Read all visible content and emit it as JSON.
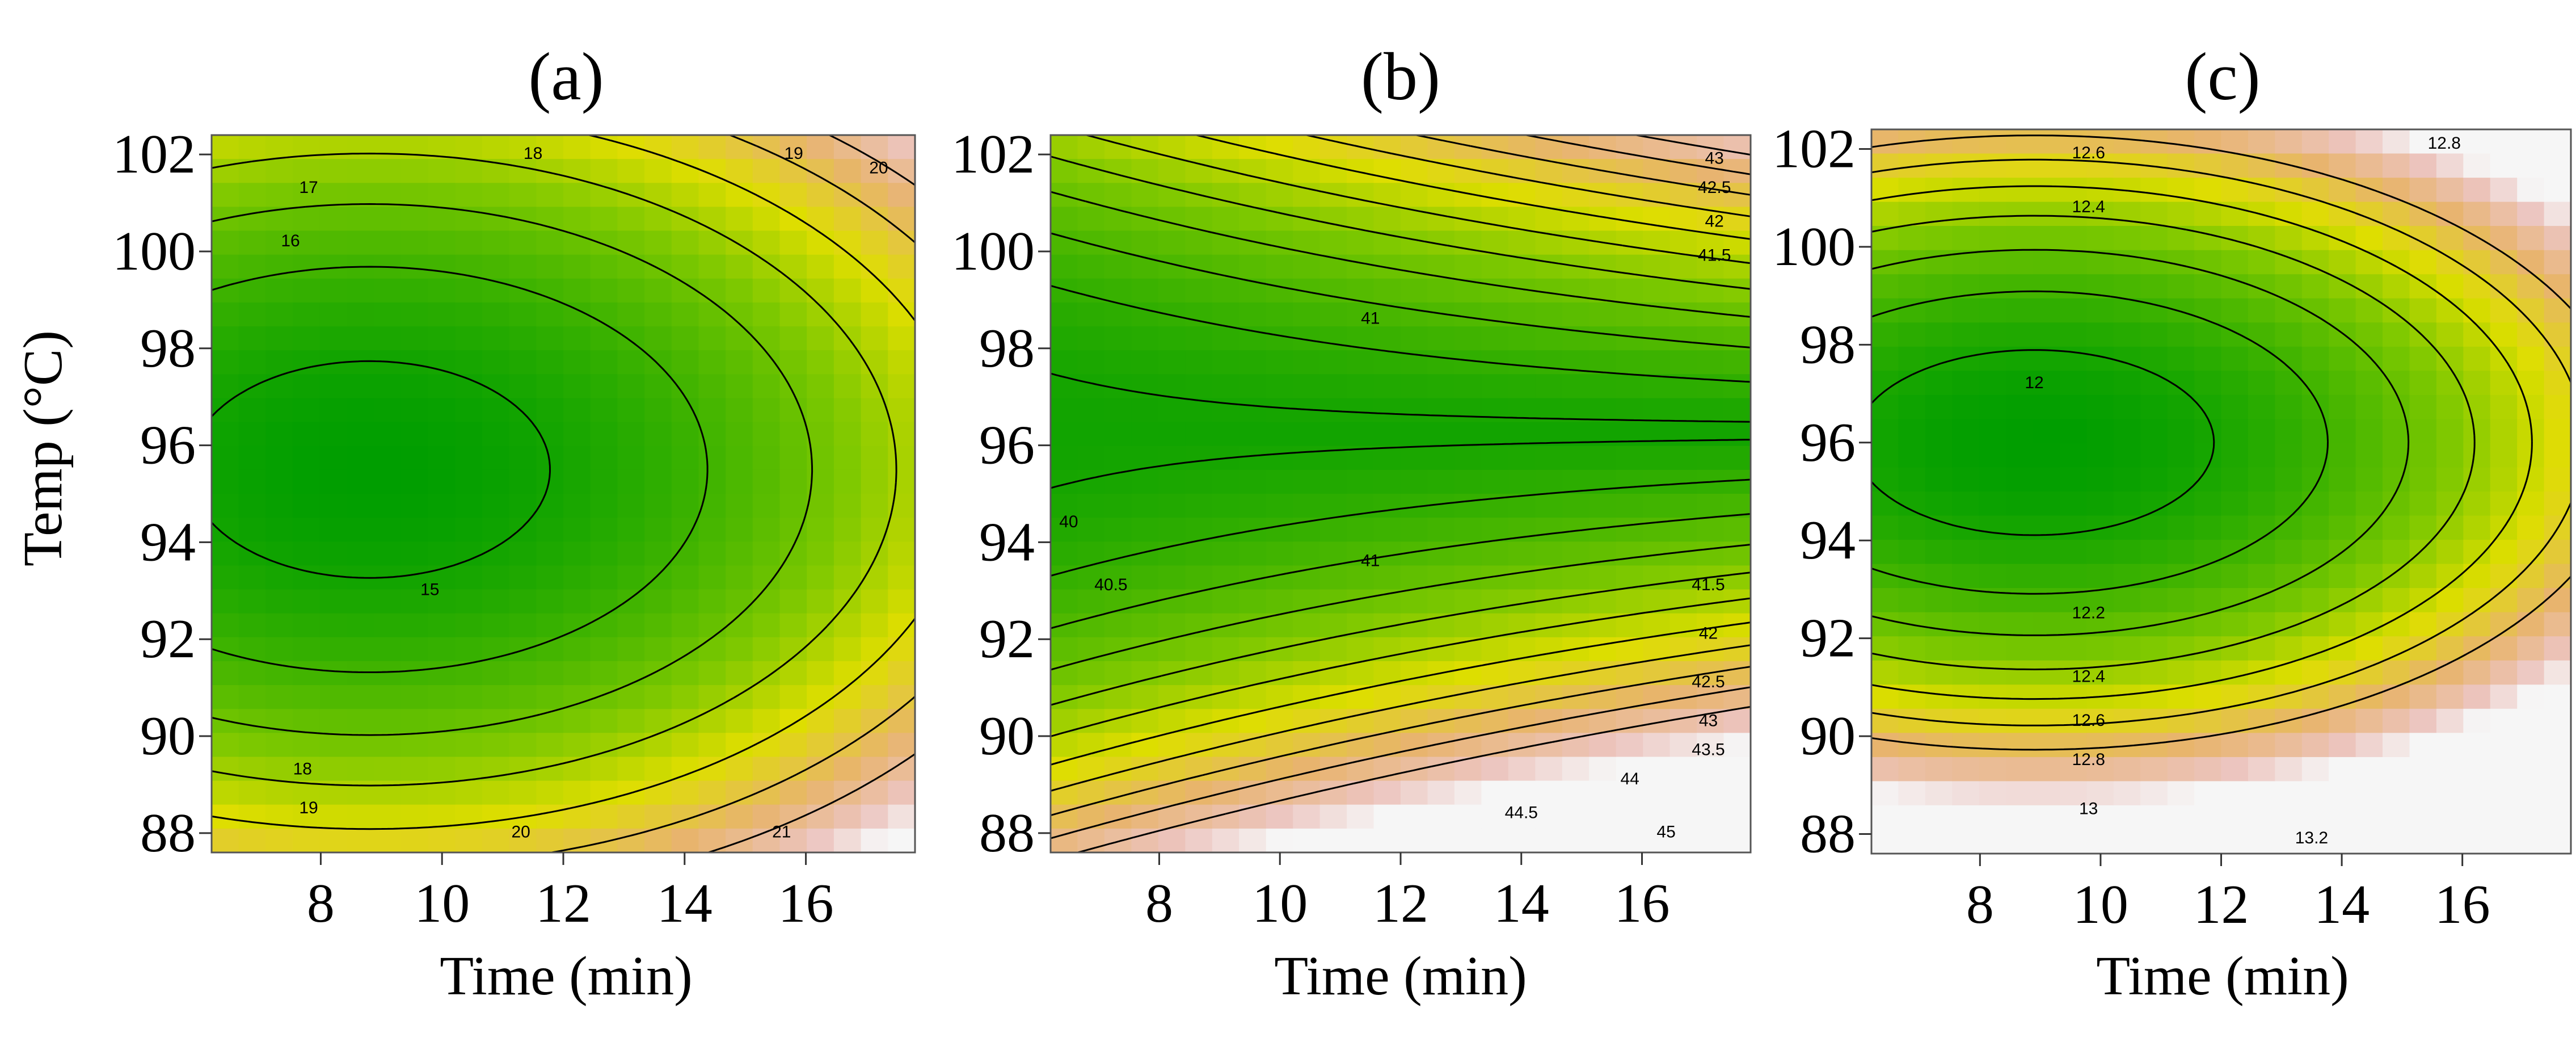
{
  "figure": {
    "ylabel": "Temp (°C)"
  },
  "chart_data": [
    {
      "type": "heatmap",
      "panel_label": "(a)",
      "xlabel": "Time (min)",
      "ylabel": "Temp (°C)",
      "xlim": [
        6.2,
        17.8
      ],
      "ylim": [
        87.6,
        102.4
      ],
      "x_ticks": [
        8,
        10,
        12,
        14,
        16
      ],
      "y_ticks": [
        88,
        90,
        92,
        94,
        96,
        98,
        100,
        102
      ],
      "model": {
        "z0": 14.6,
        "t0": 8.8,
        "T0": 95.5,
        "a": 0.045,
        "b": 0.08,
        "e": 0.0
      },
      "contour_levels": [
        15,
        16,
        17,
        18,
        19,
        20,
        21
      ],
      "z_range": [
        14.6,
        22.5
      ],
      "labeled_contours": [
        {
          "text": "15",
          "x": 9.8,
          "y": 93.0
        },
        {
          "text": "16",
          "x": 7.5,
          "y": 100.2
        },
        {
          "text": "17",
          "x": 7.8,
          "y": 101.3
        },
        {
          "text": "18",
          "x": 11.5,
          "y": 102.0
        },
        {
          "text": "19",
          "x": 15.8,
          "y": 102.0
        },
        {
          "text": "20",
          "x": 17.2,
          "y": 101.7
        },
        {
          "text": "18",
          "x": 7.7,
          "y": 89.3
        },
        {
          "text": "19",
          "x": 7.8,
          "y": 88.5
        },
        {
          "text": "20",
          "x": 11.3,
          "y": 88.0
        },
        {
          "text": "21",
          "x": 15.6,
          "y": 88.0
        }
      ]
    },
    {
      "type": "heatmap",
      "panel_label": "(b)",
      "xlabel": "Time (min)",
      "ylabel": "",
      "xlim": [
        6.2,
        17.8
      ],
      "ylim": [
        87.6,
        102.4
      ],
      "x_ticks": [
        8,
        10,
        12,
        14,
        16
      ],
      "y_ticks": [
        88,
        90,
        92,
        94,
        96,
        98,
        100,
        102
      ],
      "model": {
        "z0": 39.9,
        "t0": 6.0,
        "T0": 96.3,
        "a": 0.0,
        "b": 0.064,
        "e": 0.0045
      },
      "contour_levels": [
        40,
        40.5,
        41,
        41.5,
        42,
        42.5,
        43,
        43.5,
        44,
        44.5,
        45
      ],
      "z_range": [
        39.6,
        46.0
      ],
      "labeled_contours": [
        {
          "text": "40",
          "x": 6.5,
          "y": 94.4
        },
        {
          "text": "40.5",
          "x": 7.2,
          "y": 93.1
        },
        {
          "text": "41",
          "x": 11.5,
          "y": 98.6
        },
        {
          "text": "41",
          "x": 11.5,
          "y": 93.6
        },
        {
          "text": "41.5",
          "x": 17.1,
          "y": 93.1
        },
        {
          "text": "42",
          "x": 17.1,
          "y": 92.1
        },
        {
          "text": "42.5",
          "x": 17.1,
          "y": 91.1
        },
        {
          "text": "43",
          "x": 17.1,
          "y": 90.3
        },
        {
          "text": "43.5",
          "x": 17.1,
          "y": 89.7
        },
        {
          "text": "44",
          "x": 15.8,
          "y": 89.1
        },
        {
          "text": "44.5",
          "x": 14.0,
          "y": 88.4
        },
        {
          "text": "45",
          "x": 16.4,
          "y": 88.0
        },
        {
          "text": "43",
          "x": 17.2,
          "y": 101.9
        },
        {
          "text": "42.5",
          "x": 17.2,
          "y": 101.3
        },
        {
          "text": "42",
          "x": 17.2,
          "y": 100.6
        },
        {
          "text": "41.5",
          "x": 17.2,
          "y": 99.9
        }
      ]
    },
    {
      "type": "heatmap",
      "panel_label": "(c)",
      "xlabel": "Time (min)",
      "ylabel": "",
      "xlim": [
        6.2,
        17.8
      ],
      "ylim": [
        87.6,
        102.4
      ],
      "x_ticks": [
        8,
        10,
        12,
        14,
        16
      ],
      "y_ticks": [
        88,
        90,
        92,
        94,
        96,
        98,
        100,
        102
      ],
      "model": {
        "z0": 11.88,
        "t0": 8.9,
        "T0": 96.0,
        "a": 0.0135,
        "b": 0.0335,
        "e": 0.0
      },
      "contour_levels": [
        12,
        12.2,
        12.4,
        12.6,
        12.8,
        13,
        13.2
      ],
      "z_range": [
        11.88,
        13.7
      ],
      "labeled_contours": [
        {
          "text": "12",
          "x": 8.9,
          "y": 97.2
        },
        {
          "text": "12.2",
          "x": 9.8,
          "y": 92.5
        },
        {
          "text": "12.4",
          "x": 9.8,
          "y": 91.2
        },
        {
          "text": "12.6",
          "x": 9.8,
          "y": 90.3
        },
        {
          "text": "12.8",
          "x": 9.8,
          "y": 89.5
        },
        {
          "text": "13",
          "x": 9.8,
          "y": 88.5
        },
        {
          "text": "13.2",
          "x": 13.5,
          "y": 87.9
        },
        {
          "text": "12.4",
          "x": 9.8,
          "y": 100.8
        },
        {
          "text": "12.6",
          "x": 9.8,
          "y": 101.9
        },
        {
          "text": "12.8",
          "x": 15.7,
          "y": 102.1
        }
      ]
    }
  ]
}
